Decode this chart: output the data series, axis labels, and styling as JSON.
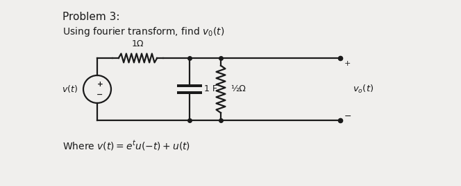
{
  "title1": "Problem 3:",
  "title2": "Using fourier transform, find $v_0(t)$",
  "where_text": "Where $v(t) = e^t u(-t) + u(t)$",
  "bg_color": "#f0efed",
  "line_color": "#1a1a1a",
  "text_color": "#1a1a1a",
  "circuit": {
    "resistor_1ohm_label": "1Ω",
    "capacitor_label": "1 F",
    "resistor_half_label": "½Ω",
    "vo_label": "$v_o(t)$",
    "vt_label": "$v(t)$"
  }
}
